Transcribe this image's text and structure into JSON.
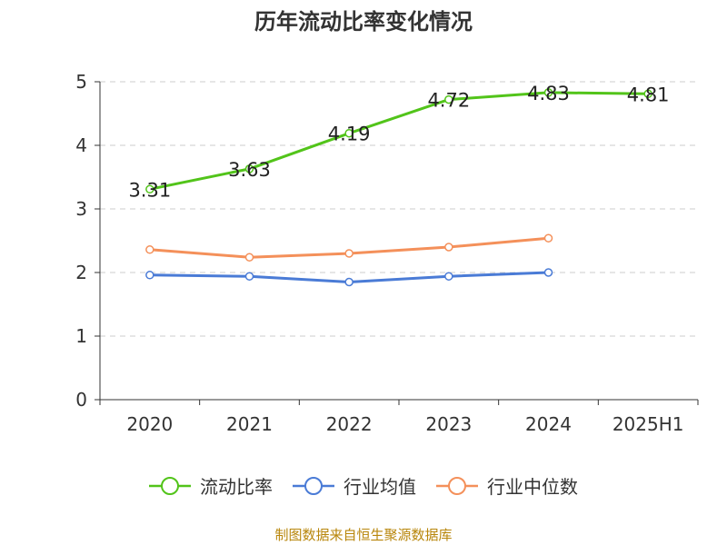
{
  "footer": {
    "source": "制图数据来自恒生聚源数据库"
  },
  "chart_data": {
    "type": "line",
    "title": "历年流动比率变化情况",
    "xlabel": "",
    "ylabel": "",
    "categories": [
      "2020",
      "2021",
      "2022",
      "2023",
      "2024",
      "2025H1"
    ],
    "ylim": [
      0,
      5
    ],
    "yticks": [
      0,
      1,
      2,
      3,
      4,
      5
    ],
    "grid": "horizontal-dashed",
    "legend_position": "bottom",
    "series": [
      {
        "name": "流动比率",
        "color": "#52c41a",
        "values": [
          3.31,
          3.63,
          4.19,
          4.72,
          4.83,
          4.81
        ],
        "data_labels": [
          "3.31",
          "3.63",
          "4.19",
          "4.72",
          "4.83",
          "4.81"
        ]
      },
      {
        "name": "行业均值",
        "color": "#4a7bd6",
        "values": [
          1.96,
          1.94,
          1.85,
          1.94,
          2.0,
          null
        ]
      },
      {
        "name": "行业中位数",
        "color": "#f4905a",
        "values": [
          2.36,
          2.24,
          2.3,
          2.4,
          2.54,
          null
        ]
      }
    ]
  }
}
